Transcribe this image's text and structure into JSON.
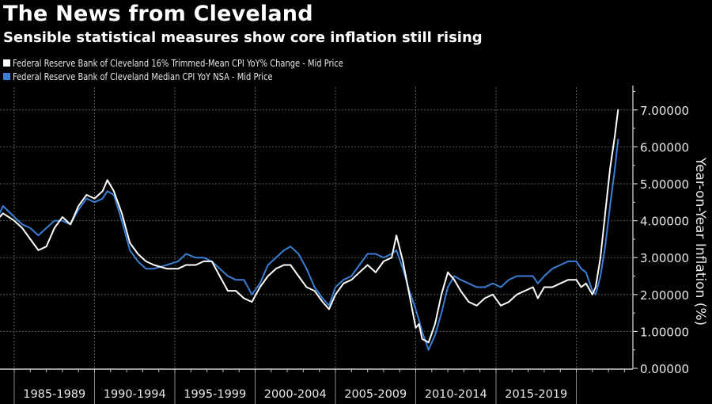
{
  "header": {
    "title": "The News from Cleveland",
    "subtitle": "Sensible statistical measures show core inflation still rising"
  },
  "legend": [
    {
      "label": "Federal Reserve Bank of Cleveland 16% Trimmed-Mean CPI YoY% Change - Mid Price",
      "color": "#ffffff"
    },
    {
      "label": "Federal Reserve Bank of Cleveland Median CPI YoY NSA - Mid Price",
      "color": "#3a7fd5"
    }
  ],
  "chart_data": {
    "type": "line",
    "title": "The News from Cleveland",
    "subtitle": "Sensible statistical measures show core inflation still rising",
    "xlabel": "",
    "ylabel": "Year-on-Year Inflation (%)",
    "ylim": [
      0,
      7.5
    ],
    "xlim": [
      1984.1,
      2023.9
    ],
    "grid": true,
    "legend_position": "top-left",
    "y_ticks": [
      0,
      1,
      2,
      3,
      4,
      5,
      6,
      7
    ],
    "y_tick_labels": [
      "0.00000",
      "1.00000",
      "2.00000",
      "3.00000",
      "4.00000",
      "5.00000",
      "6.00000",
      "7.00000"
    ],
    "x_period_boundaries": [
      1985,
      1990,
      1995,
      2000,
      2005,
      2010,
      2015,
      2020
    ],
    "x_tick_labels": [
      "1985-1989",
      "1990-1994",
      "1995-1999",
      "2000-2004",
      "2005-2009",
      "2010-2014",
      "2015-2019"
    ],
    "x": [
      1984.1,
      1984.3,
      1985.0,
      1985.5,
      1986.0,
      1986.5,
      1987.0,
      1987.5,
      1988.0,
      1988.5,
      1989.0,
      1989.5,
      1990.0,
      1990.5,
      1990.8,
      1991.2,
      1991.7,
      1992.2,
      1992.7,
      1993.2,
      1993.7,
      1994.5,
      1995.2,
      1995.7,
      1996.3,
      1996.8,
      1997.3,
      1997.8,
      1998.3,
      1998.8,
      1999.3,
      1999.8,
      2000.3,
      2000.8,
      2001.3,
      2001.8,
      2002.2,
      2002.7,
      2003.2,
      2003.7,
      2004.2,
      2004.6,
      2005.0,
      2005.5,
      2006.0,
      2006.5,
      2007.0,
      2007.5,
      2008.0,
      2008.5,
      2008.8,
      2009.2,
      2009.6,
      2010.0,
      2010.2,
      2010.4,
      2010.8,
      2011.2,
      2011.6,
      2012.0,
      2012.4,
      2012.8,
      2013.3,
      2013.8,
      2014.3,
      2014.8,
      2015.3,
      2015.8,
      2016.3,
      2016.8,
      2017.3,
      2017.6,
      2018.0,
      2018.5,
      2019.0,
      2019.5,
      2020.0,
      2020.3,
      2020.6,
      2021.0,
      2021.2,
      2021.5,
      2021.8,
      2022.1,
      2022.4,
      2022.6
    ],
    "series": [
      {
        "name": "Federal Reserve Bank of Cleveland 16% Trimmed-Mean CPI YoY% Change - Mid Price",
        "color": "#ffffff",
        "values": [
          4.1,
          4.2,
          4.0,
          3.8,
          3.5,
          3.2,
          3.3,
          3.8,
          4.1,
          3.9,
          4.4,
          4.7,
          4.6,
          4.8,
          5.1,
          4.8,
          4.2,
          3.4,
          3.1,
          2.9,
          2.8,
          2.7,
          2.7,
          2.8,
          2.8,
          2.9,
          2.9,
          2.5,
          2.1,
          2.1,
          1.9,
          1.8,
          2.2,
          2.5,
          2.7,
          2.8,
          2.8,
          2.5,
          2.2,
          2.1,
          1.8,
          1.6,
          2.0,
          2.3,
          2.4,
          2.6,
          2.8,
          2.6,
          2.9,
          3.0,
          3.6,
          2.9,
          2.0,
          1.1,
          1.2,
          0.8,
          0.7,
          1.2,
          2.0,
          2.6,
          2.4,
          2.1,
          1.8,
          1.7,
          1.9,
          2.0,
          1.7,
          1.8,
          2.0,
          2.1,
          2.2,
          1.9,
          2.2,
          2.2,
          2.3,
          2.4,
          2.4,
          2.2,
          2.3,
          2.0,
          2.2,
          3.0,
          4.2,
          5.4,
          6.3,
          7.0
        ]
      },
      {
        "name": "Federal Reserve Bank of Cleveland Median CPI YoY NSA - Mid Price",
        "color": "#3a7fd5",
        "values": [
          4.2,
          4.4,
          4.1,
          3.9,
          3.8,
          3.6,
          3.8,
          4.0,
          4.0,
          3.9,
          4.3,
          4.6,
          4.5,
          4.6,
          4.8,
          4.7,
          4.0,
          3.2,
          2.9,
          2.7,
          2.7,
          2.8,
          2.9,
          3.1,
          3.0,
          3.0,
          2.9,
          2.7,
          2.5,
          2.4,
          2.4,
          2.0,
          2.3,
          2.8,
          3.0,
          3.2,
          3.3,
          3.1,
          2.7,
          2.2,
          1.9,
          1.7,
          2.2,
          2.4,
          2.5,
          2.8,
          3.1,
          3.1,
          3.0,
          3.1,
          3.2,
          2.7,
          2.1,
          1.6,
          1.3,
          1.0,
          0.5,
          0.9,
          1.5,
          2.2,
          2.5,
          2.4,
          2.3,
          2.2,
          2.2,
          2.3,
          2.2,
          2.4,
          2.5,
          2.5,
          2.5,
          2.3,
          2.5,
          2.7,
          2.8,
          2.9,
          2.9,
          2.7,
          2.6,
          2.1,
          2.0,
          2.5,
          3.3,
          4.4,
          5.4,
          6.2
        ]
      }
    ]
  }
}
